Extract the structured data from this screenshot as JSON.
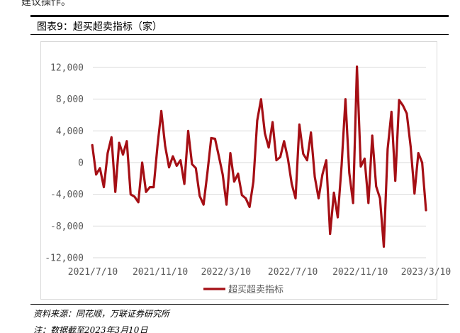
{
  "header": {
    "top_fragment": "建议操作。",
    "figure_title": "图表9：超买超卖指标（家）"
  },
  "footer": {
    "source": "资料来源：同花顺，万联证券研究所",
    "note": "注：数据截至2023年3月10日"
  },
  "colors": {
    "series": "#a50f15",
    "grid": "#d9d9d9",
    "axis_text": "#595959"
  },
  "chart_data": {
    "type": "line",
    "title": "",
    "xlabel": "",
    "ylabel": "",
    "ylim": [
      -12000,
      12000
    ],
    "yticks": [
      12000,
      8000,
      4000,
      0,
      -4000,
      -8000,
      -12000
    ],
    "ytick_labels": [
      "12,000",
      "8,000",
      "4,000",
      "0",
      "-4,000",
      "-8,000",
      "-12,000"
    ],
    "xlim": [
      "2021-07-10",
      "2023-03-10"
    ],
    "xticks": [
      "2021-07-10",
      "2021-11-10",
      "2022-03-10",
      "2022-07-10",
      "2022-11-10",
      "2023-03-10"
    ],
    "xtick_labels": [
      "2021/7/10",
      "2021/11/10",
      "2022/3/10",
      "2022/7/10",
      "2022/11/10",
      "2023/3/10"
    ],
    "grid": "horizontal",
    "legend_position": "bottom",
    "series": [
      {
        "name": "超买超卖指标",
        "color": "#a50f15",
        "x": [
          "2021-07-09",
          "2021-07-16",
          "2021-07-23",
          "2021-07-30",
          "2021-08-06",
          "2021-08-13",
          "2021-08-20",
          "2021-08-27",
          "2021-09-03",
          "2021-09-10",
          "2021-09-17",
          "2021-09-24",
          "2021-10-01",
          "2021-10-08",
          "2021-10-15",
          "2021-10-22",
          "2021-10-29",
          "2021-11-05",
          "2021-11-12",
          "2021-11-19",
          "2021-11-26",
          "2021-12-03",
          "2021-12-10",
          "2021-12-17",
          "2021-12-24",
          "2021-12-31",
          "2022-01-07",
          "2022-01-14",
          "2022-01-21",
          "2022-01-28",
          "2022-02-04",
          "2022-02-11",
          "2022-02-18",
          "2022-02-25",
          "2022-03-04",
          "2022-03-11",
          "2022-03-18",
          "2022-03-25",
          "2022-04-01",
          "2022-04-08",
          "2022-04-15",
          "2022-04-22",
          "2022-04-29",
          "2022-05-06",
          "2022-05-13",
          "2022-05-20",
          "2022-05-27",
          "2022-06-03",
          "2022-06-10",
          "2022-06-17",
          "2022-06-24",
          "2022-07-01",
          "2022-07-08",
          "2022-07-15",
          "2022-07-22",
          "2022-07-29",
          "2022-08-05",
          "2022-08-12",
          "2022-08-19",
          "2022-08-26",
          "2022-09-02",
          "2022-09-09",
          "2022-09-16",
          "2022-09-23",
          "2022-09-30",
          "2022-10-07",
          "2022-10-14",
          "2022-10-21",
          "2022-10-28",
          "2022-11-04",
          "2022-11-11",
          "2022-11-18",
          "2022-11-25",
          "2022-12-02",
          "2022-12-09",
          "2022-12-16",
          "2022-12-23",
          "2022-12-30",
          "2023-01-06",
          "2023-01-13",
          "2023-01-20",
          "2023-01-27",
          "2023-02-03",
          "2023-02-10",
          "2023-02-17",
          "2023-02-24",
          "2023-03-03",
          "2023-03-10"
        ],
        "values": [
          2200,
          -1500,
          -700,
          -3100,
          1200,
          3200,
          -3700,
          2500,
          1000,
          2700,
          -4000,
          -4300,
          -5000,
          0,
          -3700,
          -3100,
          -3100,
          2100,
          6500,
          2100,
          -600,
          800,
          -400,
          300,
          -2700,
          4000,
          -200,
          -700,
          -4200,
          -5300,
          -1300,
          3100,
          3000,
          800,
          -1500,
          -5300,
          1200,
          -2400,
          -1400,
          -4100,
          -4500,
          -5600,
          -2400,
          5300,
          8000,
          3700,
          1900,
          5100,
          300,
          700,
          2700,
          500,
          -2700,
          -4500,
          4800,
          1100,
          300,
          3800,
          -1800,
          -4500,
          -1500,
          300,
          -9000,
          -3800,
          -6900,
          -300,
          8000,
          -1300,
          -5100,
          12100,
          -500,
          500,
          -5100,
          3400,
          -3000,
          -4500,
          -10600,
          1700,
          6400,
          -2300,
          7900,
          7200,
          6200,
          2000,
          -3900,
          1200,
          0,
          -6000
        ]
      }
    ]
  }
}
